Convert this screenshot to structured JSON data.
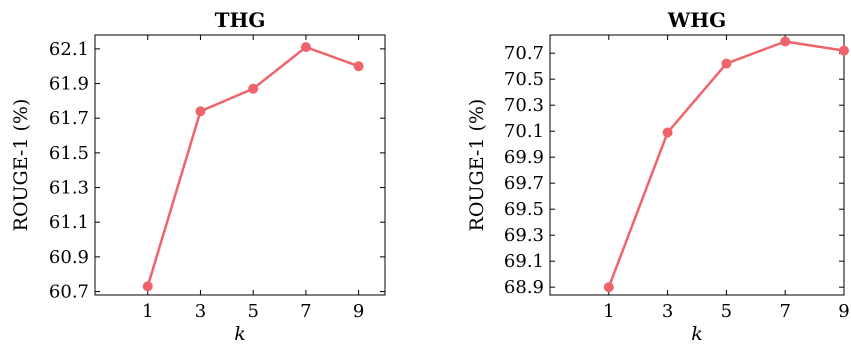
{
  "chart_data": [
    {
      "type": "line",
      "title": "THG",
      "xlabel": "k",
      "ylabel": "ROUGE-1 (%)",
      "x": [
        1,
        3,
        5,
        7,
        9
      ],
      "series": [
        {
          "values": [
            60.73,
            61.74,
            61.87,
            62.11,
            62.0
          ]
        }
      ],
      "xticks": [
        1,
        3,
        5,
        7,
        9
      ],
      "yticks": [
        "60.7",
        "60.9",
        "61.1",
        "61.3",
        "61.5",
        "61.7",
        "61.9",
        "62.1"
      ],
      "xlim": [
        -1,
        10
      ],
      "ylim": [
        60.68,
        62.18
      ],
      "grid": false,
      "color": "#f0636b"
    },
    {
      "type": "line",
      "title": "WHG",
      "xlabel": "k",
      "ylabel": "ROUGE-1 (%)",
      "x": [
        1,
        3,
        5,
        7,
        9
      ],
      "series": [
        {
          "values": [
            68.9,
            70.09,
            70.62,
            70.79,
            70.72
          ]
        }
      ],
      "xticks": [
        1,
        3,
        5,
        7,
        9
      ],
      "yticks": [
        "68.9",
        "69.1",
        "69.3",
        "69.5",
        "69.7",
        "69.9",
        "70.1",
        "70.3",
        "70.5",
        "70.7"
      ],
      "xlim": [
        -1,
        9
      ],
      "ylim": [
        68.84,
        70.84
      ],
      "grid": false,
      "color": "#f0636b"
    }
  ]
}
